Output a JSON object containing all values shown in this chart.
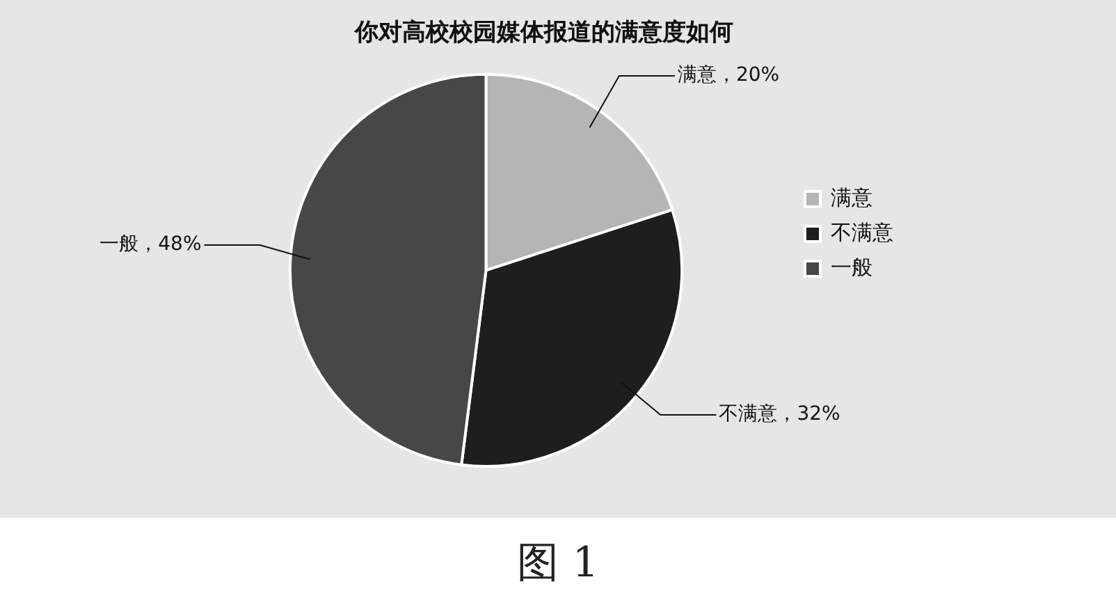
{
  "chart_data": {
    "type": "pie",
    "title": "你对高校校园媒体报道的满意度如何",
    "categories": [
      "满意",
      "不满意",
      "一般"
    ],
    "values": [
      20,
      32,
      48
    ],
    "colors": [
      "#b5b5b5",
      "#1e1e1e",
      "#474747"
    ],
    "value_labels": [
      "满意，20%",
      "不满意，32%",
      "一般，48%"
    ],
    "legend": "right",
    "annotations": [
      "图 1"
    ]
  }
}
